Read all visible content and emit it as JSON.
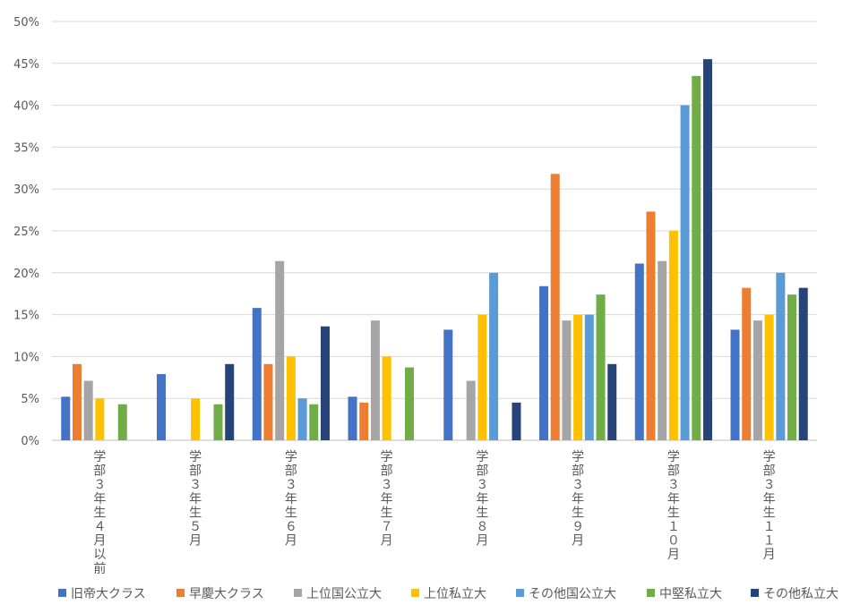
{
  "chart_data": {
    "type": "bar",
    "title": "",
    "xlabel": "",
    "ylabel": "",
    "ylim": [
      0,
      50
    ],
    "y_ticks": [
      "0%",
      "5%",
      "10%",
      "15%",
      "20%",
      "25%",
      "30%",
      "35%",
      "40%",
      "45%",
      "50%"
    ],
    "grid": true,
    "legend_position": "bottom",
    "categories": [
      "学部３年生４月以前",
      "学部３年生５月",
      "学部３年生６月",
      "学部３年生７月",
      "学部３年生８月",
      "学部３年生９月",
      "学部３年生１０月",
      "学部３年生１１月"
    ],
    "series": [
      {
        "name": "旧帝大クラス",
        "color": "#4472C4",
        "values": [
          5.2,
          7.9,
          15.8,
          5.2,
          13.2,
          18.4,
          21.1,
          13.2
        ]
      },
      {
        "name": "早慶大クラス",
        "color": "#ED7D31",
        "values": [
          9.1,
          0,
          9.1,
          4.5,
          0,
          31.8,
          27.3,
          18.2
        ]
      },
      {
        "name": "上位国公立大",
        "color": "#A5A5A5",
        "values": [
          7.1,
          0,
          21.4,
          14.3,
          7.1,
          14.3,
          21.4,
          14.3
        ]
      },
      {
        "name": "上位私立大",
        "color": "#FFC000",
        "values": [
          5.0,
          5.0,
          10.0,
          10.0,
          15.0,
          15.0,
          25.0,
          15.0
        ]
      },
      {
        "name": "その他国公立大",
        "color": "#5B9BD5",
        "values": [
          0,
          0,
          5.0,
          0,
          20.0,
          15.0,
          40.0,
          20.0
        ]
      },
      {
        "name": "中堅私立大",
        "color": "#70AD47",
        "values": [
          4.3,
          4.3,
          4.3,
          8.7,
          0,
          17.4,
          43.5,
          17.4
        ]
      },
      {
        "name": "その他私立大",
        "color": "#264478",
        "values": [
          0,
          9.1,
          13.6,
          0,
          4.5,
          9.1,
          45.5,
          18.2
        ]
      }
    ]
  }
}
